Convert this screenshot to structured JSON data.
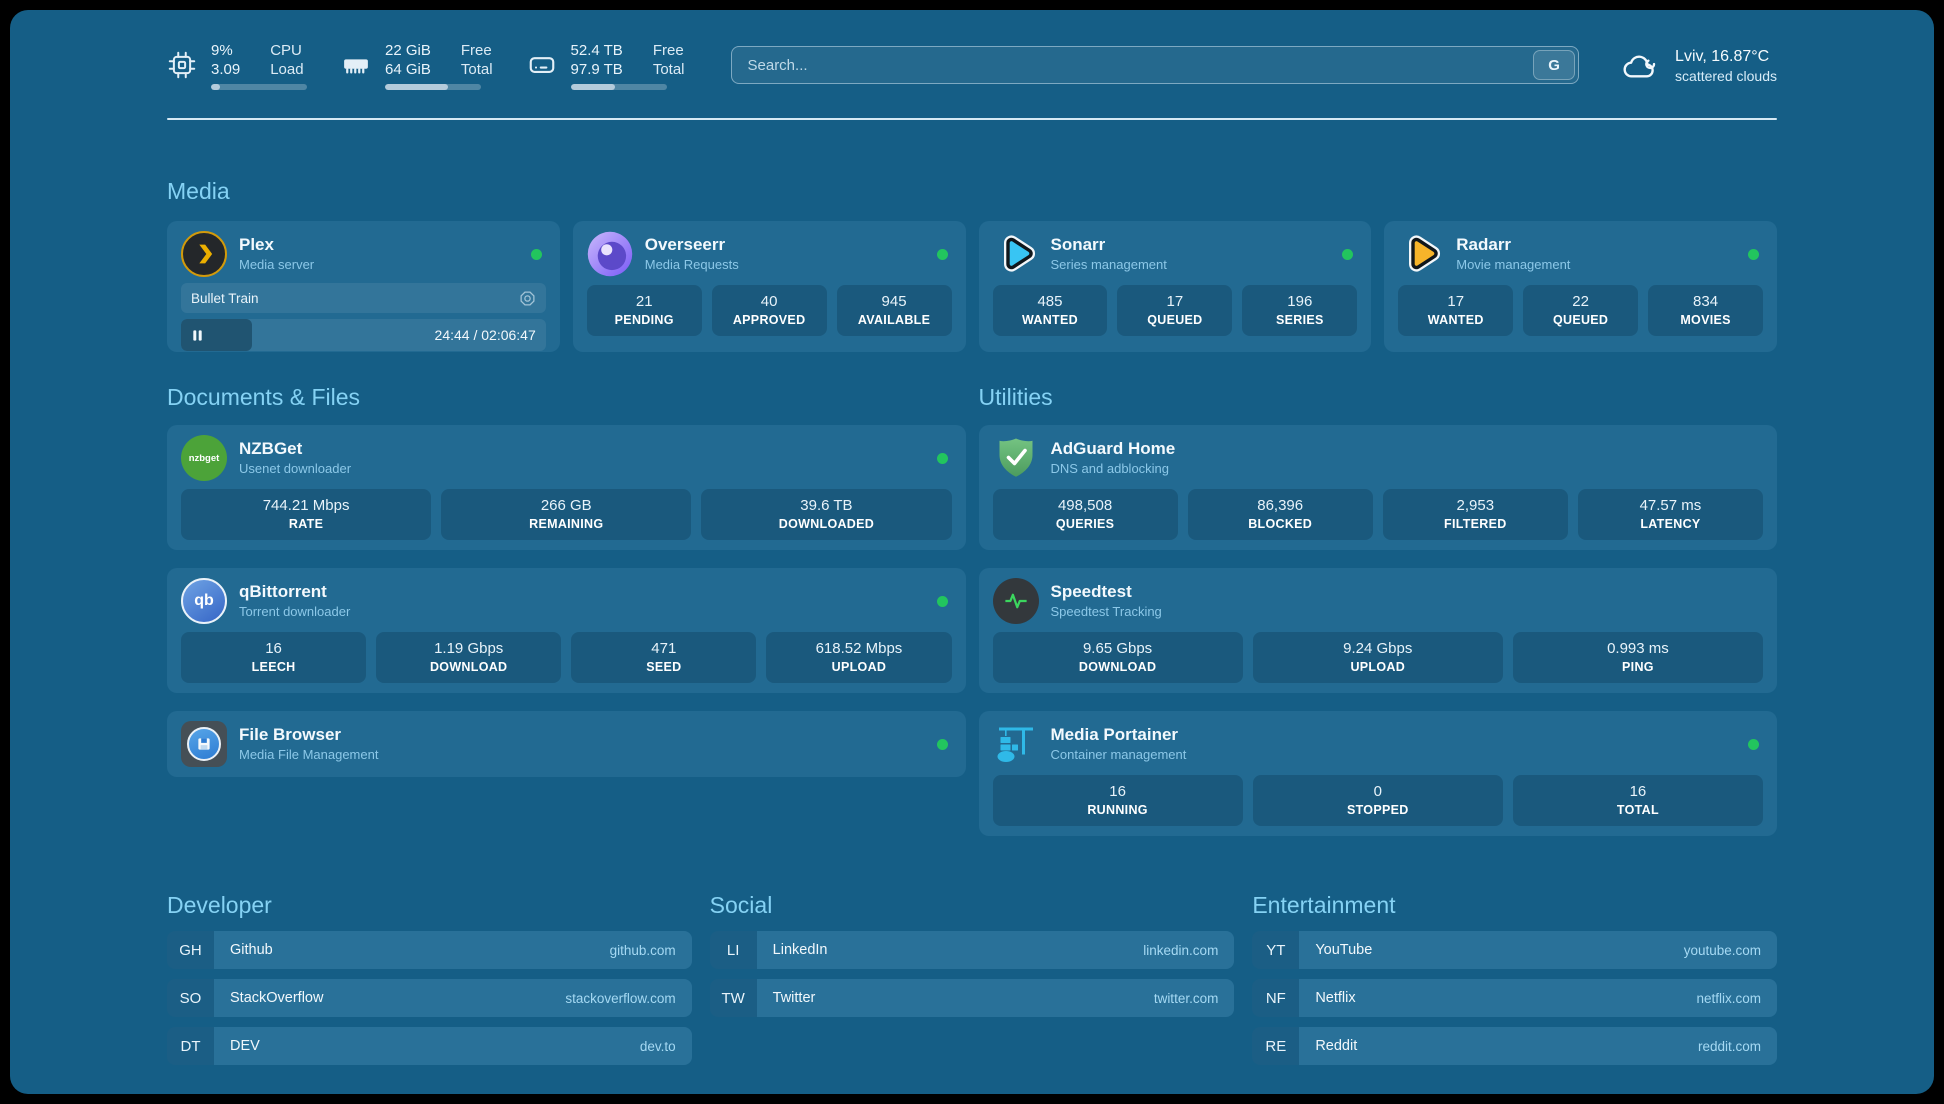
{
  "colors": {
    "background": "#155E86",
    "card": "#226A92",
    "accent": "#85D2F4",
    "status_online": "#22C55E",
    "plex_brand": "#EBAF00"
  },
  "topbar": {
    "cpu": {
      "icon": "cpu-icon",
      "value_top": "9%",
      "value_bottom": "3.09",
      "label_top": "CPU",
      "label_bottom": "Load",
      "progress": 9
    },
    "memory": {
      "icon": "memory-icon",
      "value_top": "22 GiB",
      "value_bottom": "64 GiB",
      "label_top": "Free",
      "label_bottom": "Total",
      "progress": 66
    },
    "disk": {
      "icon": "disk-icon",
      "value_top": "52.4 TB",
      "value_bottom": "97.9 TB",
      "label_top": "Free",
      "label_bottom": "Total",
      "progress": 46
    },
    "search": {
      "placeholder": "Search...",
      "provider_button": "G"
    },
    "weather": {
      "icon": "cloud-icon",
      "location_temp": "Lviv, 16.87°C",
      "condition": "scattered clouds"
    }
  },
  "sections": {
    "media": "Media",
    "documents": "Documents & Files",
    "utilities": "Utilities",
    "developer": "Developer",
    "social": "Social",
    "entertainment": "Entertainment"
  },
  "services": {
    "plex": {
      "icon": "plex-icon",
      "name": "Plex",
      "desc": "Media server",
      "status": "online",
      "now_playing": "Bullet Train",
      "time": "24:44 / 02:06:47",
      "progress_pct": 19.5
    },
    "overseerr": {
      "icon": "overseerr-icon",
      "name": "Overseerr",
      "desc": "Media Requests",
      "status": "online",
      "stats": [
        {
          "value": "21",
          "label": "PENDING"
        },
        {
          "value": "40",
          "label": "APPROVED"
        },
        {
          "value": "945",
          "label": "AVAILABLE"
        }
      ]
    },
    "sonarr": {
      "icon": "sonarr-icon",
      "name": "Sonarr",
      "desc": "Series management",
      "status": "online",
      "stats": [
        {
          "value": "485",
          "label": "WANTED"
        },
        {
          "value": "17",
          "label": "QUEUED"
        },
        {
          "value": "196",
          "label": "SERIES"
        }
      ]
    },
    "radarr": {
      "icon": "radarr-icon",
      "name": "Radarr",
      "desc": "Movie management",
      "status": "online",
      "stats": [
        {
          "value": "17",
          "label": "WANTED"
        },
        {
          "value": "22",
          "label": "QUEUED"
        },
        {
          "value": "834",
          "label": "MOVIES"
        }
      ]
    },
    "nzbget": {
      "icon": "nzbget-icon",
      "icon_text": "nzbget",
      "name": "NZBGet",
      "desc": "Usenet downloader",
      "status": "online",
      "stats": [
        {
          "value": "744.21 Mbps",
          "label": "RATE"
        },
        {
          "value": "266 GB",
          "label": "REMAINING"
        },
        {
          "value": "39.6 TB",
          "label": "DOWNLOADED"
        }
      ]
    },
    "qbittorrent": {
      "icon": "qbittorrent-icon",
      "icon_text": "qb",
      "name": "qBittorrent",
      "desc": "Torrent downloader",
      "status": "online",
      "stats": [
        {
          "value": "16",
          "label": "LEECH"
        },
        {
          "value": "1.19 Gbps",
          "label": "DOWNLOAD"
        },
        {
          "value": "471",
          "label": "SEED"
        },
        {
          "value": "618.52 Mbps",
          "label": "UPLOAD"
        }
      ]
    },
    "filebrowser": {
      "icon": "filebrowser-icon",
      "name": "File Browser",
      "desc": "Media File Management",
      "status": "online"
    },
    "adguard": {
      "icon": "adguard-icon",
      "name": "AdGuard Home",
      "desc": "DNS and adblocking",
      "stats": [
        {
          "value": "498,508",
          "label": "QUERIES"
        },
        {
          "value": "86,396",
          "label": "BLOCKED"
        },
        {
          "value": "2,953",
          "label": "FILTERED"
        },
        {
          "value": "47.57 ms",
          "label": "LATENCY"
        }
      ]
    },
    "speedtest": {
      "icon": "speedtest-icon",
      "name": "Speedtest",
      "desc": "Speedtest Tracking",
      "stats": [
        {
          "value": "9.65 Gbps",
          "label": "DOWNLOAD"
        },
        {
          "value": "9.24 Gbps",
          "label": "UPLOAD"
        },
        {
          "value": "0.993 ms",
          "label": "PING"
        }
      ]
    },
    "portainer": {
      "icon": "portainer-icon",
      "name": "Media Portainer",
      "desc": "Container management",
      "status": "online",
      "stats": [
        {
          "value": "16",
          "label": "RUNNING"
        },
        {
          "value": "0",
          "label": "STOPPED"
        },
        {
          "value": "16",
          "label": "TOTAL"
        }
      ]
    }
  },
  "bookmarks": {
    "developer": [
      {
        "abbr": "GH",
        "name": "Github",
        "url": "github.com"
      },
      {
        "abbr": "SO",
        "name": "StackOverflow",
        "url": "stackoverflow.com"
      },
      {
        "abbr": "DT",
        "name": "DEV",
        "url": "dev.to"
      }
    ],
    "social": [
      {
        "abbr": "LI",
        "name": "LinkedIn",
        "url": "linkedin.com"
      },
      {
        "abbr": "TW",
        "name": "Twitter",
        "url": "twitter.com"
      }
    ],
    "entertainment": [
      {
        "abbr": "YT",
        "name": "YouTube",
        "url": "youtube.com"
      },
      {
        "abbr": "NF",
        "name": "Netflix",
        "url": "netflix.com"
      },
      {
        "abbr": "RE",
        "name": "Reddit",
        "url": "reddit.com"
      }
    ]
  }
}
